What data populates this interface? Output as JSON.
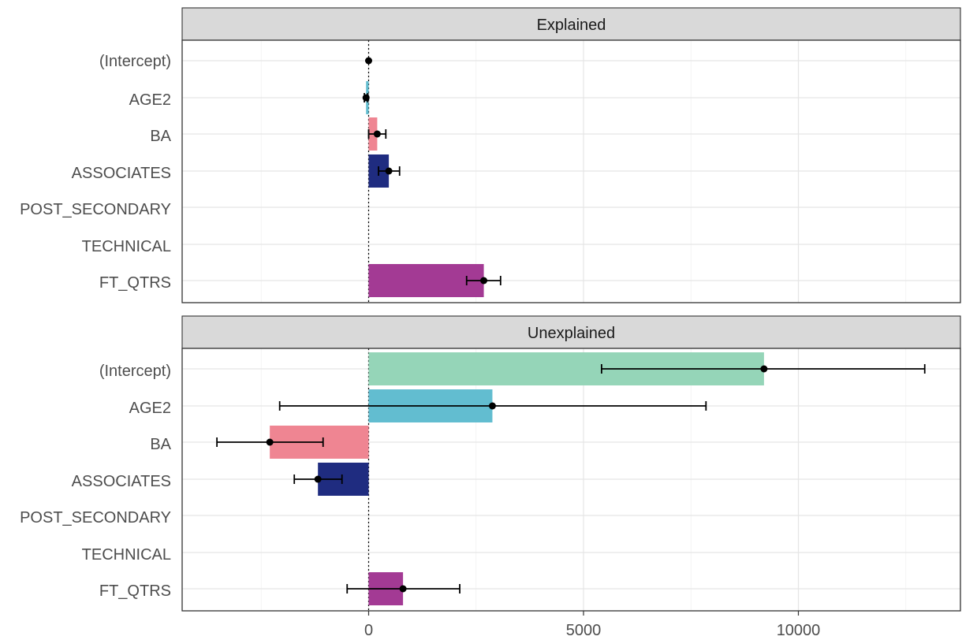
{
  "chart_data": {
    "type": "bar",
    "orientation": "horizontal",
    "facets": [
      "Explained",
      "Unexplained"
    ],
    "categories": [
      "(Intercept)",
      "AGE2",
      "BA",
      "ASSOCIATES",
      "POST_SECONDARY",
      "TECHNICAL",
      "FT_QTRS"
    ],
    "xlim": [
      -4300,
      13000
    ],
    "xticks": [
      0,
      5000,
      10000
    ],
    "xtick_labels": [
      "0",
      "5000",
      "10000"
    ],
    "grid": true,
    "reference_line": 0,
    "colors": {
      "(Intercept)": "#95d5b8",
      "AGE2": "#62bdd0",
      "BA": "#ef8592",
      "ASSOCIATES": "#1f2c80",
      "POST_SECONDARY": "#999999",
      "TECHNICAL": "#999999",
      "FT_QTRS": "#a33a94"
    },
    "series": [
      {
        "name": "Explained",
        "values": [
          0,
          -60,
          200,
          470,
          null,
          null,
          2680
        ],
        "lower": [
          0,
          -100,
          0,
          230,
          null,
          null,
          2280
        ],
        "upper": [
          0,
          -20,
          400,
          720,
          null,
          null,
          3070
        ]
      },
      {
        "name": "Unexplained",
        "values": [
          9200,
          2880,
          -2300,
          -1180,
          null,
          null,
          800
        ],
        "lower": [
          5420,
          -2070,
          -3530,
          -1730,
          null,
          null,
          -500
        ],
        "upper": [
          12940,
          7850,
          -1060,
          -620,
          null,
          null,
          2120
        ]
      }
    ]
  }
}
